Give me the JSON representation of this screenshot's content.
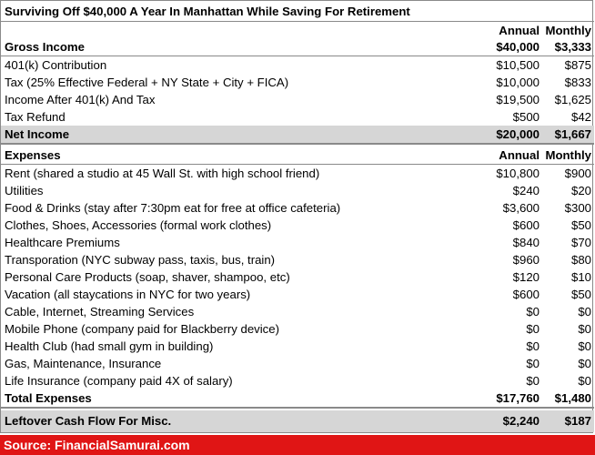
{
  "title": "Surviving Off $40,000 A Year In Manhattan While Saving For Retirement",
  "columns": {
    "annual": "Annual",
    "monthly": "Monthly"
  },
  "income": {
    "header": {
      "label": "Gross Income",
      "annual": "$40,000",
      "monthly": "$3,333"
    },
    "rows": [
      {
        "label": "401(k) Contribution",
        "annual": "$10,500",
        "monthly": "$875"
      },
      {
        "label": "Tax (25% Effective Federal + NY State + City + FICA)",
        "annual": "$10,000",
        "monthly": "$833"
      },
      {
        "label": "Income After 401(k) And Tax",
        "annual": "$19,500",
        "monthly": "$1,625"
      },
      {
        "label": "Tax Refund",
        "annual": "$500",
        "monthly": "$42"
      }
    ],
    "net": {
      "label": "Net Income",
      "annual": "$20,000",
      "monthly": "$1,667"
    }
  },
  "expenses": {
    "header": {
      "label": "Expenses",
      "annual": "Annual",
      "monthly": "Monthly"
    },
    "rows": [
      {
        "label": "Rent (shared a studio at 45 Wall St. with high school friend)",
        "annual": "$10,800",
        "monthly": "$900"
      },
      {
        "label": "Utilities",
        "annual": "$240",
        "monthly": "$20"
      },
      {
        "label": "Food & Drinks (stay after 7:30pm eat for free at office cafeteria)",
        "annual": "$3,600",
        "monthly": "$300"
      },
      {
        "label": "Clothes, Shoes, Accessories (formal work clothes)",
        "annual": "$600",
        "monthly": "$50"
      },
      {
        "label": "Healthcare Premiums",
        "annual": "$840",
        "monthly": "$70"
      },
      {
        "label": "Transporation (NYC subway pass, taxis, bus, train)",
        "annual": "$960",
        "monthly": "$80"
      },
      {
        "label": "Personal Care Products (soap, shaver, shampoo, etc)",
        "annual": "$120",
        "monthly": "$10"
      },
      {
        "label": "Vacation (all staycations in NYC for two years)",
        "annual": "$600",
        "monthly": "$50"
      },
      {
        "label": "Cable, Internet, Streaming Services",
        "annual": "$0",
        "monthly": "$0"
      },
      {
        "label": "Mobile Phone (company paid for Blackberry device)",
        "annual": "$0",
        "monthly": "$0"
      },
      {
        "label": "Health Club (had small gym in building)",
        "annual": "$0",
        "monthly": "$0"
      },
      {
        "label": "Gas, Maintenance, Insurance",
        "annual": "$0",
        "monthly": "$0"
      },
      {
        "label": "Life Insurance (company paid 4X of salary)",
        "annual": "$0",
        "monthly": "$0"
      }
    ],
    "total": {
      "label": "Total Expenses",
      "annual": "$17,760",
      "monthly": "$1,480"
    }
  },
  "leftover": {
    "label": "Leftover Cash Flow For Misc.",
    "annual": "$2,240",
    "monthly": "$187"
  },
  "source": "Source: FinancialSamurai.com"
}
